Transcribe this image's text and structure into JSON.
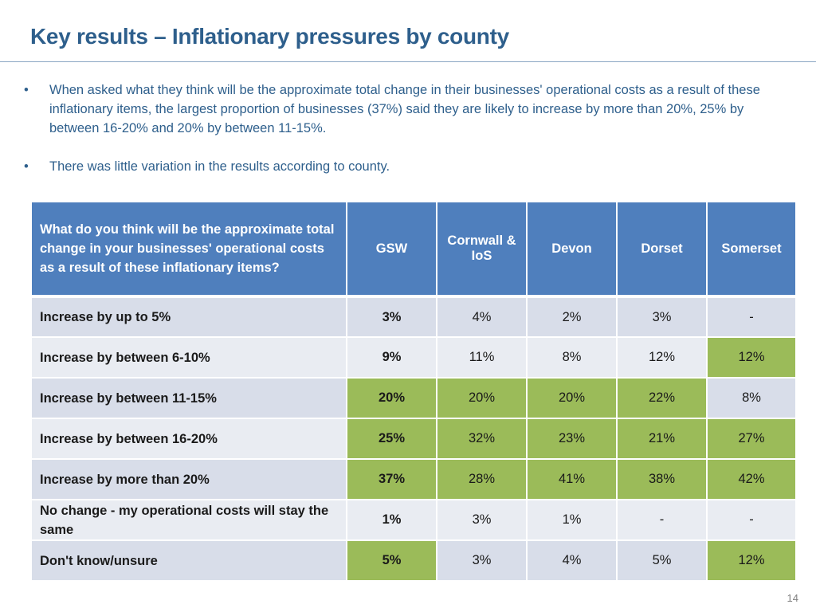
{
  "slide": {
    "title": "Key results – Inflationary pressures by county",
    "page_number": "14"
  },
  "bullets": [
    {
      "marker": "•",
      "text": "When asked what they think will be the approximate total change in their businesses' operational costs as a result of these inflationary items, the largest proportion of businesses (37%) said they are likely to increase by more than 20%, 25% by between 16-20% and 20% by between 11-15%."
    },
    {
      "marker": "•",
      "text": "There was little variation in the results according to county."
    }
  ],
  "table": {
    "header": {
      "question": "What do you think will be the approximate total change in your businesses' operational costs as a result of these inflationary items?",
      "columns": [
        "GSW",
        "Cornwall & IoS",
        "Devon",
        "Dorset",
        "Somerset"
      ]
    },
    "highlight_color": "#9bbb59",
    "header_color": "#4f7fbd",
    "rows": [
      {
        "label": "Increase by up to 5%",
        "values": [
          "3%",
          "4%",
          "2%",
          "3%",
          "-"
        ],
        "highlight": [
          false,
          false,
          false,
          false,
          false
        ]
      },
      {
        "label": "Increase by between 6-10%",
        "values": [
          "9%",
          "11%",
          "8%",
          "12%",
          "12%"
        ],
        "highlight": [
          false,
          false,
          false,
          false,
          true
        ]
      },
      {
        "label": "Increase by between 11-15%",
        "values": [
          "20%",
          "20%",
          "20%",
          "22%",
          "8%"
        ],
        "highlight": [
          true,
          true,
          true,
          true,
          false
        ]
      },
      {
        "label": "Increase by between 16-20%",
        "values": [
          "25%",
          "32%",
          "23%",
          "21%",
          "27%"
        ],
        "highlight": [
          true,
          true,
          true,
          true,
          true
        ]
      },
      {
        "label": "Increase by more than 20%",
        "values": [
          "37%",
          "28%",
          "41%",
          "38%",
          "42%"
        ],
        "highlight": [
          true,
          true,
          true,
          true,
          true
        ]
      },
      {
        "label": "No change - my operational costs will stay the same",
        "values": [
          "1%",
          "3%",
          "1%",
          "-",
          "-"
        ],
        "highlight": [
          false,
          false,
          false,
          false,
          false
        ]
      },
      {
        "label": "Don't know/unsure",
        "values": [
          "5%",
          "3%",
          "4%",
          "5%",
          "12%"
        ],
        "highlight": [
          true,
          false,
          false,
          false,
          true
        ]
      }
    ]
  }
}
